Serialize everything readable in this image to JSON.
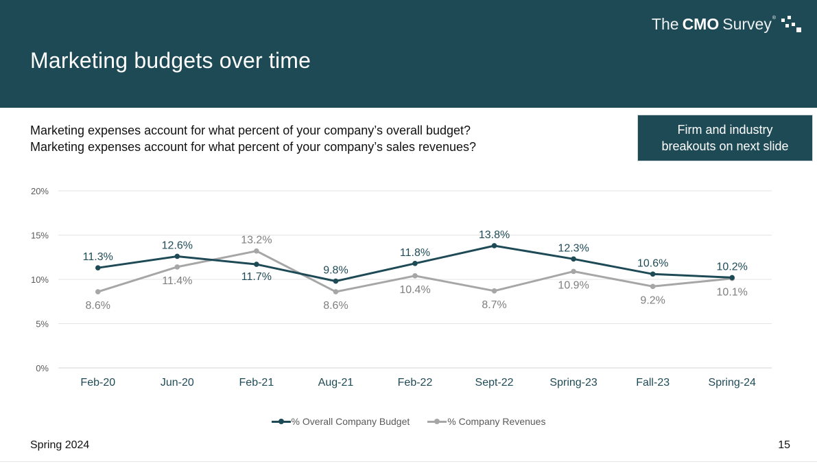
{
  "header": {
    "title": "Marketing budgets over time",
    "brand_prefix": "The",
    "brand_bold": "CMO",
    "brand_suffix": "Survey",
    "brand_tm": "®",
    "color": "#1e4a56"
  },
  "questions": {
    "line1": "Marketing expenses account for what percent of your company’s overall budget?",
    "line2": "Marketing expenses account for what percent of your company’s sales revenues?"
  },
  "callout": {
    "line1": "Firm and industry",
    "line2": "breakouts on next slide"
  },
  "chart_data": {
    "type": "line",
    "categories": [
      "Feb-20",
      "Jun-20",
      "Feb-21",
      "Aug-21",
      "Feb-22",
      "Sept-22",
      "Spring-23",
      "Fall-23",
      "Spring-24"
    ],
    "y_ticks": [
      "0%",
      "5%",
      "10%",
      "15%",
      "20%"
    ],
    "ylim": [
      0,
      20
    ],
    "grid": true,
    "legend_position": "bottom-center",
    "series": [
      {
        "name": "% Overall Company Budget",
        "values": [
          11.3,
          12.6,
          11.7,
          9.8,
          11.8,
          13.8,
          12.3,
          10.6,
          10.2
        ],
        "labels": [
          "11.3%",
          "12.6%",
          "11.7%",
          "9.8%",
          "11.8%",
          "13.8%",
          "12.3%",
          "10.6%",
          "10.2%"
        ],
        "color": "#1e4a56"
      },
      {
        "name": "% Company Revenues",
        "values": [
          8.6,
          11.4,
          13.2,
          8.6,
          10.4,
          8.7,
          10.9,
          9.2,
          10.1
        ],
        "labels": [
          "8.6%",
          "11.4%",
          "13.2%",
          "8.6%",
          "10.4%",
          "8.7%",
          "10.9%",
          "9.2%",
          "10.1%"
        ],
        "color": "#a6a6a6"
      }
    ]
  },
  "footer": {
    "left": "Spring 2024",
    "page_number": "15"
  }
}
